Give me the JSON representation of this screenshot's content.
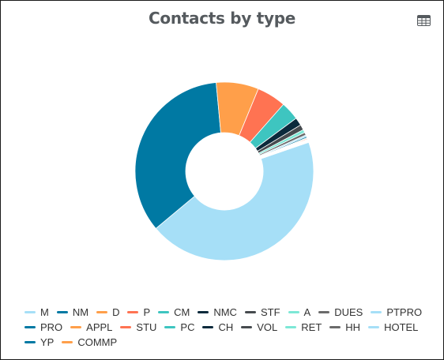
{
  "title": "Contacts by type",
  "icons": {
    "table_view": "table-icon"
  },
  "chart_data": {
    "type": "pie",
    "donut": true,
    "title": "Contacts by type",
    "legend_position": "bottom",
    "categories": [
      "M",
      "NM",
      "D",
      "P",
      "CM",
      "NMC",
      "STF",
      "A",
      "DUES",
      "PTPRO",
      "PRO",
      "APPL",
      "STU",
      "PC",
      "CH",
      "VOL",
      "RET",
      "HH",
      "HOTEL",
      "YP",
      "COMMP"
    ],
    "values": [
      920,
      720,
      160,
      110,
      70,
      30,
      20,
      12,
      10,
      6,
      5,
      3,
      3,
      2,
      2,
      2,
      2,
      1,
      1,
      1,
      1
    ],
    "colors": [
      "#a6dff7",
      "#0079a3",
      "#ff9f4a",
      "#ff7352",
      "#3ec5c0",
      "#0b2a3c",
      "#464b4f",
      "#7de8d6",
      "#6b6b6b",
      "#a6dff7",
      "#0079a3",
      "#ff9f4a",
      "#ff7352",
      "#3ec5c0",
      "#0b2a3c",
      "#464b4f",
      "#7de8d6",
      "#6b6b6b",
      "#a6dff7",
      "#0079a3",
      "#ff9f4a"
    ]
  }
}
